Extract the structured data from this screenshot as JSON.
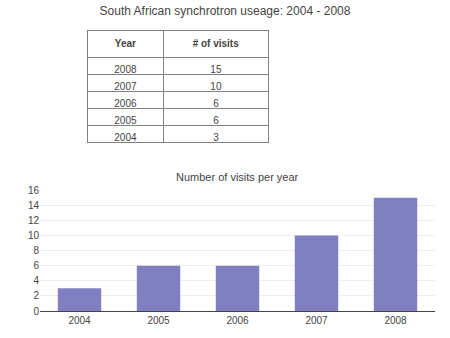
{
  "chart_data": [
    {
      "type": "table",
      "title": "South African synchrotron useage: 2004 - 2008",
      "columns": [
        "Year",
        "# of visits"
      ],
      "rows": [
        [
          "2008",
          "15"
        ],
        [
          "2007",
          "10"
        ],
        [
          "2006",
          "6"
        ],
        [
          "2005",
          "6"
        ],
        [
          "2004",
          "3"
        ]
      ]
    },
    {
      "type": "bar",
      "title": "Number of visits per year",
      "categories": [
        "2004",
        "2005",
        "2006",
        "2007",
        "2008"
      ],
      "values": [
        3,
        6,
        6,
        10,
        15
      ],
      "color": "#8080C0",
      "ylim": [
        0,
        16
      ],
      "yticks": [
        0,
        2,
        4,
        6,
        8,
        10,
        12,
        14,
        16
      ],
      "grid": true
    }
  ]
}
